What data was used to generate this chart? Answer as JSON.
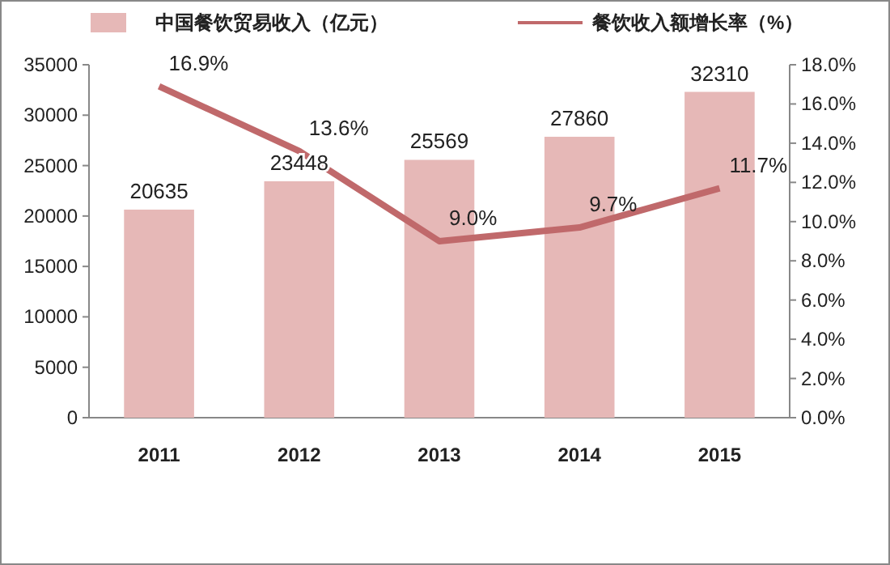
{
  "chart_data": {
    "type": "bar",
    "categories": [
      "2011",
      "2012",
      "2013",
      "2014",
      "2015"
    ],
    "series": [
      {
        "name": "中国餐饮贸易收入（亿元）",
        "color": "#e6b8b7",
        "values": [
          20635,
          23448,
          25569,
          27860,
          32310
        ]
      },
      {
        "name": "餐饮收入额增长率（%）",
        "type": "line",
        "axis": "y2",
        "color": "#c0696b",
        "values": [
          16.9,
          13.6,
          9.0,
          9.7,
          11.7
        ],
        "value_labels": [
          "16.9%",
          "13.6%",
          "9.0%",
          "9.7%",
          "11.7%"
        ]
      }
    ],
    "ylim": [
      0,
      35000
    ],
    "yticks": [
      0,
      5000,
      10000,
      15000,
      20000,
      25000,
      30000,
      35000
    ],
    "y2lim": [
      0,
      18
    ],
    "y2ticks": [
      {
        "value": 0,
        "label": "0.0%"
      },
      {
        "value": 2,
        "label": "2.0%"
      },
      {
        "value": 4,
        "label": "4.0%"
      },
      {
        "value": 6,
        "label": "6.0%"
      },
      {
        "value": 8,
        "label": "8.0%"
      },
      {
        "value": 10,
        "label": "10.0%"
      },
      {
        "value": 12,
        "label": "12.0%"
      },
      {
        "value": 14,
        "label": "14.0%"
      },
      {
        "value": 16,
        "label": "16.0%"
      },
      {
        "value": 18,
        "label": "18.0%"
      }
    ],
    "data_labels": true,
    "legend": "top",
    "marker": "none",
    "line_style": "solid"
  }
}
